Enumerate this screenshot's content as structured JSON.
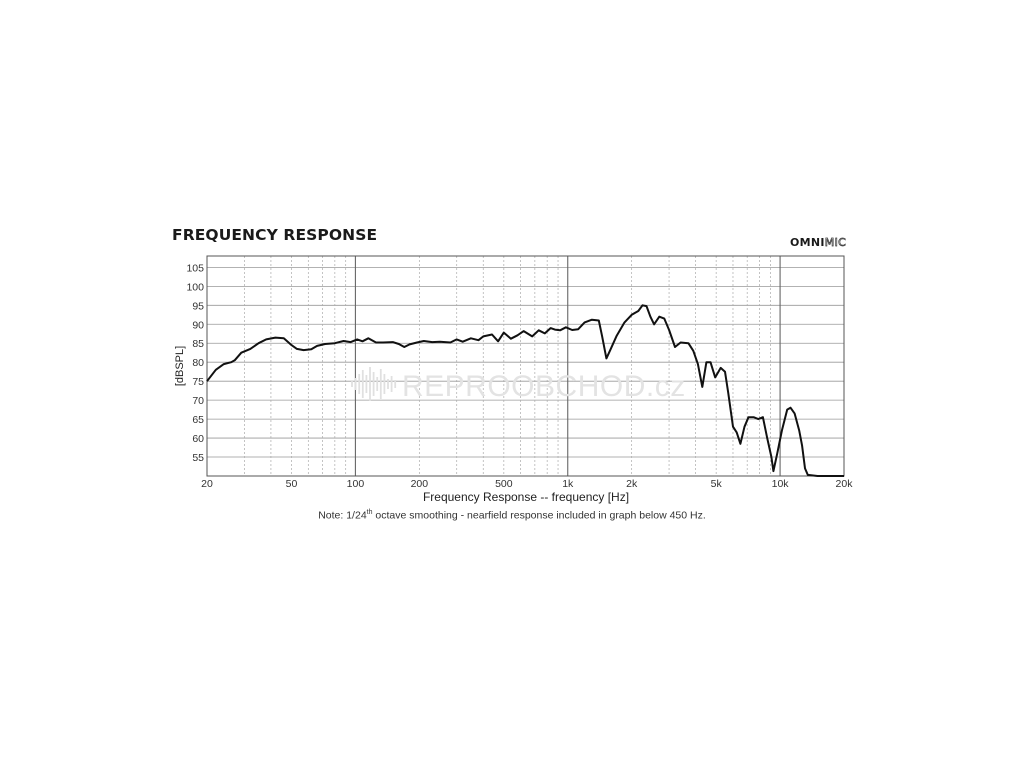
{
  "chart_data": {
    "type": "line",
    "title": "FREQUENCY RESPONSE",
    "brand": {
      "bold": "OMNI",
      "outline": "MIC"
    },
    "xlabel": "Frequency Response -- frequency [Hz]",
    "ylabel": "[dBSPL]",
    "x_scale": "log",
    "xlim": [
      20,
      20000
    ],
    "ylim": [
      50,
      108
    ],
    "y_ticks": [
      55,
      60,
      65,
      70,
      75,
      80,
      85,
      90,
      95,
      100,
      105
    ],
    "y_tick_labels": [
      "55",
      "60",
      "65",
      "70",
      "75",
      "80",
      "85",
      "90",
      "95",
      "100",
      "105"
    ],
    "x_ticks": [
      20,
      50,
      100,
      200,
      500,
      1000,
      2000,
      5000,
      10000,
      20000
    ],
    "x_tick_labels": [
      "20",
      "50",
      "100",
      "200",
      "500",
      "1k",
      "2k",
      "5k",
      "10k",
      "20k"
    ],
    "grid": true,
    "watermark": "REPROOBCHOD.cz",
    "note": {
      "before": "Note: 1/24",
      "sup": "th",
      "after": " octave smoothing - nearfield response included in graph below 450 Hz."
    },
    "series": [
      {
        "color": "#111111",
        "points": [
          [
            20,
            75
          ],
          [
            22,
            78
          ],
          [
            24,
            79.5
          ],
          [
            26,
            80
          ],
          [
            27,
            80.5
          ],
          [
            29,
            82.5
          ],
          [
            32,
            83.5
          ],
          [
            35,
            85
          ],
          [
            38,
            86
          ],
          [
            42,
            86.5
          ],
          [
            46,
            86.3
          ],
          [
            50,
            84.5
          ],
          [
            53,
            83.5
          ],
          [
            57,
            83.2
          ],
          [
            62,
            83.4
          ],
          [
            66,
            84.3
          ],
          [
            72,
            84.8
          ],
          [
            80,
            85
          ],
          [
            88,
            85.6
          ],
          [
            95,
            85.3
          ],
          [
            102,
            86
          ],
          [
            108,
            85.5
          ],
          [
            115,
            86.3
          ],
          [
            125,
            85.2
          ],
          [
            135,
            85.2
          ],
          [
            150,
            85.3
          ],
          [
            160,
            84.8
          ],
          [
            170,
            84
          ],
          [
            180,
            84.7
          ],
          [
            195,
            85.2
          ],
          [
            210,
            85.6
          ],
          [
            230,
            85.3
          ],
          [
            250,
            85.4
          ],
          [
            280,
            85.2
          ],
          [
            300,
            86
          ],
          [
            320,
            85.4
          ],
          [
            350,
            86.3
          ],
          [
            380,
            85.8
          ],
          [
            400,
            86.8
          ],
          [
            440,
            87.3
          ],
          [
            470,
            85.5
          ],
          [
            500,
            87.8
          ],
          [
            540,
            86.2
          ],
          [
            580,
            87.1
          ],
          [
            620,
            88.2
          ],
          [
            680,
            86.8
          ],
          [
            730,
            88.4
          ],
          [
            780,
            87.6
          ],
          [
            830,
            89
          ],
          [
            870,
            88.6
          ],
          [
            920,
            88.4
          ],
          [
            980,
            89.2
          ],
          [
            1050,
            88.5
          ],
          [
            1120,
            88.7
          ],
          [
            1200,
            90.5
          ],
          [
            1300,
            91.2
          ],
          [
            1400,
            91
          ],
          [
            1450,
            87
          ],
          [
            1520,
            81
          ],
          [
            1580,
            83
          ],
          [
            1700,
            87
          ],
          [
            1850,
            90.5
          ],
          [
            2000,
            92.5
          ],
          [
            2150,
            93.5
          ],
          [
            2250,
            95
          ],
          [
            2350,
            94.8
          ],
          [
            2450,
            92
          ],
          [
            2550,
            90
          ],
          [
            2700,
            92
          ],
          [
            2850,
            91.5
          ],
          [
            3000,
            88.5
          ],
          [
            3200,
            84
          ],
          [
            3400,
            85.2
          ],
          [
            3700,
            85
          ],
          [
            3900,
            83
          ],
          [
            4100,
            79.5
          ],
          [
            4300,
            73.5
          ],
          [
            4500,
            80
          ],
          [
            4700,
            80
          ],
          [
            4950,
            76
          ],
          [
            5250,
            78.5
          ],
          [
            5500,
            77.5
          ],
          [
            5700,
            72
          ],
          [
            6000,
            63
          ],
          [
            6250,
            61.5
          ],
          [
            6500,
            58.5
          ],
          [
            6800,
            63
          ],
          [
            7100,
            65.5
          ],
          [
            7500,
            65.5
          ],
          [
            7900,
            65
          ],
          [
            8300,
            65.5
          ],
          [
            8700,
            60
          ],
          [
            9100,
            55
          ],
          [
            9300,
            51.3
          ],
          [
            9700,
            56
          ],
          [
            10200,
            62
          ],
          [
            10800,
            67.5
          ],
          [
            11200,
            68
          ],
          [
            11700,
            66.5
          ],
          [
            12300,
            62
          ],
          [
            12700,
            58
          ],
          [
            13100,
            52
          ],
          [
            13500,
            50.3
          ],
          [
            14000,
            50.2
          ],
          [
            15000,
            50
          ],
          [
            17000,
            49.9
          ],
          [
            20000,
            50
          ]
        ]
      }
    ]
  }
}
